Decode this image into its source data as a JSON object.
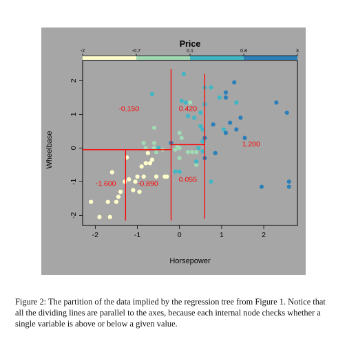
{
  "chart_data": {
    "type": "scatter",
    "title": "Price",
    "xlabel": "Horsepower",
    "ylabel": "Wheelbase",
    "xlim": [
      -2.3,
      2.8
    ],
    "ylim": [
      -2.3,
      2.6
    ],
    "xticks": [
      "-2",
      "-1",
      "0",
      "1",
      "2"
    ],
    "yticks": [
      "-2",
      "-1",
      "0",
      "1",
      "2"
    ],
    "xtick_values": [
      -2,
      -1,
      0,
      1,
      2
    ],
    "ytick_values": [
      -2,
      -1,
      0,
      1,
      2
    ],
    "colorbar": {
      "ticks": [
        "-2",
        "-0.7",
        "0.1",
        "0.8",
        "3"
      ],
      "segments": [
        {
          "from": -2,
          "to": -0.7,
          "color": "#ffffcc"
        },
        {
          "from": -0.7,
          "to": 0.1,
          "color": "#a1dab4"
        },
        {
          "from": 0.1,
          "to": 0.8,
          "color": "#41b6c4"
        },
        {
          "from": 0.8,
          "to": 3,
          "color": "#2c7fb8"
        }
      ]
    },
    "partition_lines": [
      {
        "x1": -2.3,
        "y1": -0.05,
        "x2": -0.2,
        "y2": -0.05
      },
      {
        "x1": -0.2,
        "y1": 0.1,
        "x2": 0.6,
        "y2": 0.1
      },
      {
        "x1": -0.2,
        "y1": 2.35,
        "x2": -0.2,
        "y2": -2.15
      },
      {
        "x1": 0.6,
        "y1": 2.2,
        "x2": 0.6,
        "y2": -2.1
      },
      {
        "x1": -1.28,
        "y1": -0.05,
        "x2": -1.28,
        "y2": -2.15
      }
    ],
    "region_labels": [
      {
        "text": "-0.150",
        "x": -1.2,
        "y": 1.1
      },
      {
        "text": "0.420",
        "x": 0.2,
        "y": 1.1
      },
      {
        "text": "1.200",
        "x": 1.7,
        "y": 0.05
      },
      {
        "text": "-1.600",
        "x": -1.75,
        "y": -1.13
      },
      {
        "text": "-0.890",
        "x": -0.75,
        "y": -1.13
      },
      {
        "text": "0.055",
        "x": 0.2,
        "y": -1.0
      }
    ],
    "points": [
      {
        "x": -2.1,
        "y": -1.6,
        "price": -1.6
      },
      {
        "x": -1.9,
        "y": -2.05,
        "price": -1.6
      },
      {
        "x": -1.65,
        "y": -2.05,
        "price": -1.6
      },
      {
        "x": -1.6,
        "y": -0.72,
        "price": -1.5
      },
      {
        "x": -1.7,
        "y": -1.6,
        "price": -1.6
      },
      {
        "x": -1.5,
        "y": -1.6,
        "price": -1.5
      },
      {
        "x": -1.45,
        "y": -1.45,
        "price": -1.5
      },
      {
        "x": -1.4,
        "y": -1.3,
        "price": -1.4
      },
      {
        "x": -1.3,
        "y": -1.0,
        "price": -1.3
      },
      {
        "x": -1.2,
        "y": -0.93,
        "price": -1.2
      },
      {
        "x": -1.25,
        "y": -0.28,
        "price": -1.0
      },
      {
        "x": -1.1,
        "y": -1.25,
        "price": -1.1
      },
      {
        "x": -1.05,
        "y": -1.0,
        "price": -1.0
      },
      {
        "x": -1.0,
        "y": -0.85,
        "price": -1.0
      },
      {
        "x": -0.95,
        "y": -1.3,
        "price": -0.9
      },
      {
        "x": -0.9,
        "y": -0.55,
        "price": -0.9
      },
      {
        "x": -0.85,
        "y": -0.85,
        "price": -0.8
      },
      {
        "x": -0.8,
        "y": -0.45,
        "price": -0.9
      },
      {
        "x": -0.75,
        "y": -0.15,
        "price": -0.8
      },
      {
        "x": -0.7,
        "y": -0.45,
        "price": -0.9
      },
      {
        "x": -0.65,
        "y": -0.35,
        "price": -0.8
      },
      {
        "x": -0.55,
        "y": -0.85,
        "price": -0.9
      },
      {
        "x": -0.35,
        "y": -0.85,
        "price": -0.8
      },
      {
        "x": -0.3,
        "y": -0.85,
        "price": -0.9
      },
      {
        "x": -0.85,
        "y": 0.15,
        "price": -0.5
      },
      {
        "x": -0.8,
        "y": 0.0,
        "price": -0.4
      },
      {
        "x": -0.6,
        "y": 0.15,
        "price": -0.4
      },
      {
        "x": -0.6,
        "y": 0.0,
        "price": -0.3
      },
      {
        "x": -0.55,
        "y": -0.12,
        "price": -0.2
      },
      {
        "x": -0.6,
        "y": 0.6,
        "price": -0.2
      },
      {
        "x": -0.5,
        "y": 0.0,
        "price": 0.3
      },
      {
        "x": -0.4,
        "y": -0.05,
        "price": -0.3
      },
      {
        "x": -0.65,
        "y": 1.6,
        "price": 0.3
      },
      {
        "x": -0.2,
        "y": 0.15,
        "price": 1.0
      },
      {
        "x": -0.1,
        "y": -0.05,
        "price": 0.0
      },
      {
        "x": -0.05,
        "y": 0.05,
        "price": -0.2
      },
      {
        "x": 0.0,
        "y": 0.0,
        "price": -0.1
      },
      {
        "x": 0.0,
        "y": -0.3,
        "price": -0.3
      },
      {
        "x": 0.0,
        "y": 0.45,
        "price": -0.2
      },
      {
        "x": 0.05,
        "y": 0.3,
        "price": -0.2
      },
      {
        "x": 0.2,
        "y": -0.12,
        "price": -0.3
      },
      {
        "x": 0.3,
        "y": -0.12,
        "price": -0.3
      },
      {
        "x": 0.4,
        "y": -0.12,
        "price": -0.1
      },
      {
        "x": 0.4,
        "y": -0.5,
        "price": -0.2
      },
      {
        "x": 0.4,
        "y": -0.4,
        "price": 0.4
      },
      {
        "x": 0.45,
        "y": 0.0,
        "price": 0.3
      },
      {
        "x": 0.55,
        "y": -0.1,
        "price": 0.3
      },
      {
        "x": -0.1,
        "y": -0.7,
        "price": 0.5
      },
      {
        "x": 0.0,
        "y": -0.7,
        "price": 0.5
      },
      {
        "x": 0.75,
        "y": -1.0,
        "price": 0.3
      },
      {
        "x": 0.05,
        "y": 1.4,
        "price": 0.3
      },
      {
        "x": 0.15,
        "y": 1.35,
        "price": 0.3
      },
      {
        "x": 0.25,
        "y": 1.35,
        "price": -0.2
      },
      {
        "x": 0.1,
        "y": 2.2,
        "price": 0.3
      },
      {
        "x": 0.2,
        "y": 0.95,
        "price": 0.5
      },
      {
        "x": 0.35,
        "y": 0.9,
        "price": 0.6
      },
      {
        "x": 0.5,
        "y": 1.05,
        "price": 0.5
      },
      {
        "x": 0.5,
        "y": 0.65,
        "price": 0.7
      },
      {
        "x": 0.55,
        "y": 0.55,
        "price": 0.5
      },
      {
        "x": 0.55,
        "y": 0.2,
        "price": 0.8
      },
      {
        "x": 0.6,
        "y": 0.3,
        "price": 1.0
      },
      {
        "x": 0.6,
        "y": -0.3,
        "price": 1.2
      },
      {
        "x": 0.6,
        "y": 1.3,
        "price": 0.7
      },
      {
        "x": 0.6,
        "y": 1.8,
        "price": 0.5
      },
      {
        "x": 0.75,
        "y": 1.8,
        "price": 0.5
      },
      {
        "x": 0.8,
        "y": 0.7,
        "price": 0.9
      },
      {
        "x": 0.85,
        "y": -0.15,
        "price": 1.3
      },
      {
        "x": 0.95,
        "y": 1.5,
        "price": 0.7
      },
      {
        "x": 1.05,
        "y": 0.55,
        "price": 0.7
      },
      {
        "x": 1.1,
        "y": 0.45,
        "price": 1.2
      },
      {
        "x": 1.1,
        "y": 1.65,
        "price": 1.2
      },
      {
        "x": 1.1,
        "y": 1.5,
        "price": 1.3
      },
      {
        "x": 1.2,
        "y": 0.75,
        "price": 1.3
      },
      {
        "x": 1.3,
        "y": 1.95,
        "price": 1.4
      },
      {
        "x": 1.35,
        "y": 1.35,
        "price": 0.8
      },
      {
        "x": 1.35,
        "y": 0.55,
        "price": 1.3
      },
      {
        "x": 1.45,
        "y": 0.9,
        "price": 1.4
      },
      {
        "x": 1.55,
        "y": 0.3,
        "price": 1.4
      },
      {
        "x": 1.95,
        "y": -1.15,
        "price": 2.0
      },
      {
        "x": 2.3,
        "y": 1.35,
        "price": 2.2
      },
      {
        "x": 2.55,
        "y": 1.05,
        "price": 2.3
      },
      {
        "x": 2.6,
        "y": -1.0,
        "price": 2.4
      },
      {
        "x": 2.6,
        "y": -1.15,
        "price": 2.5
      }
    ]
  },
  "caption": "Figure 2: The partition of the data implied by the regression tree from Figure 1. Notice that all the dividing lines are parallel to the axes, because each internal node checks whether a single variable is above or below a given value."
}
